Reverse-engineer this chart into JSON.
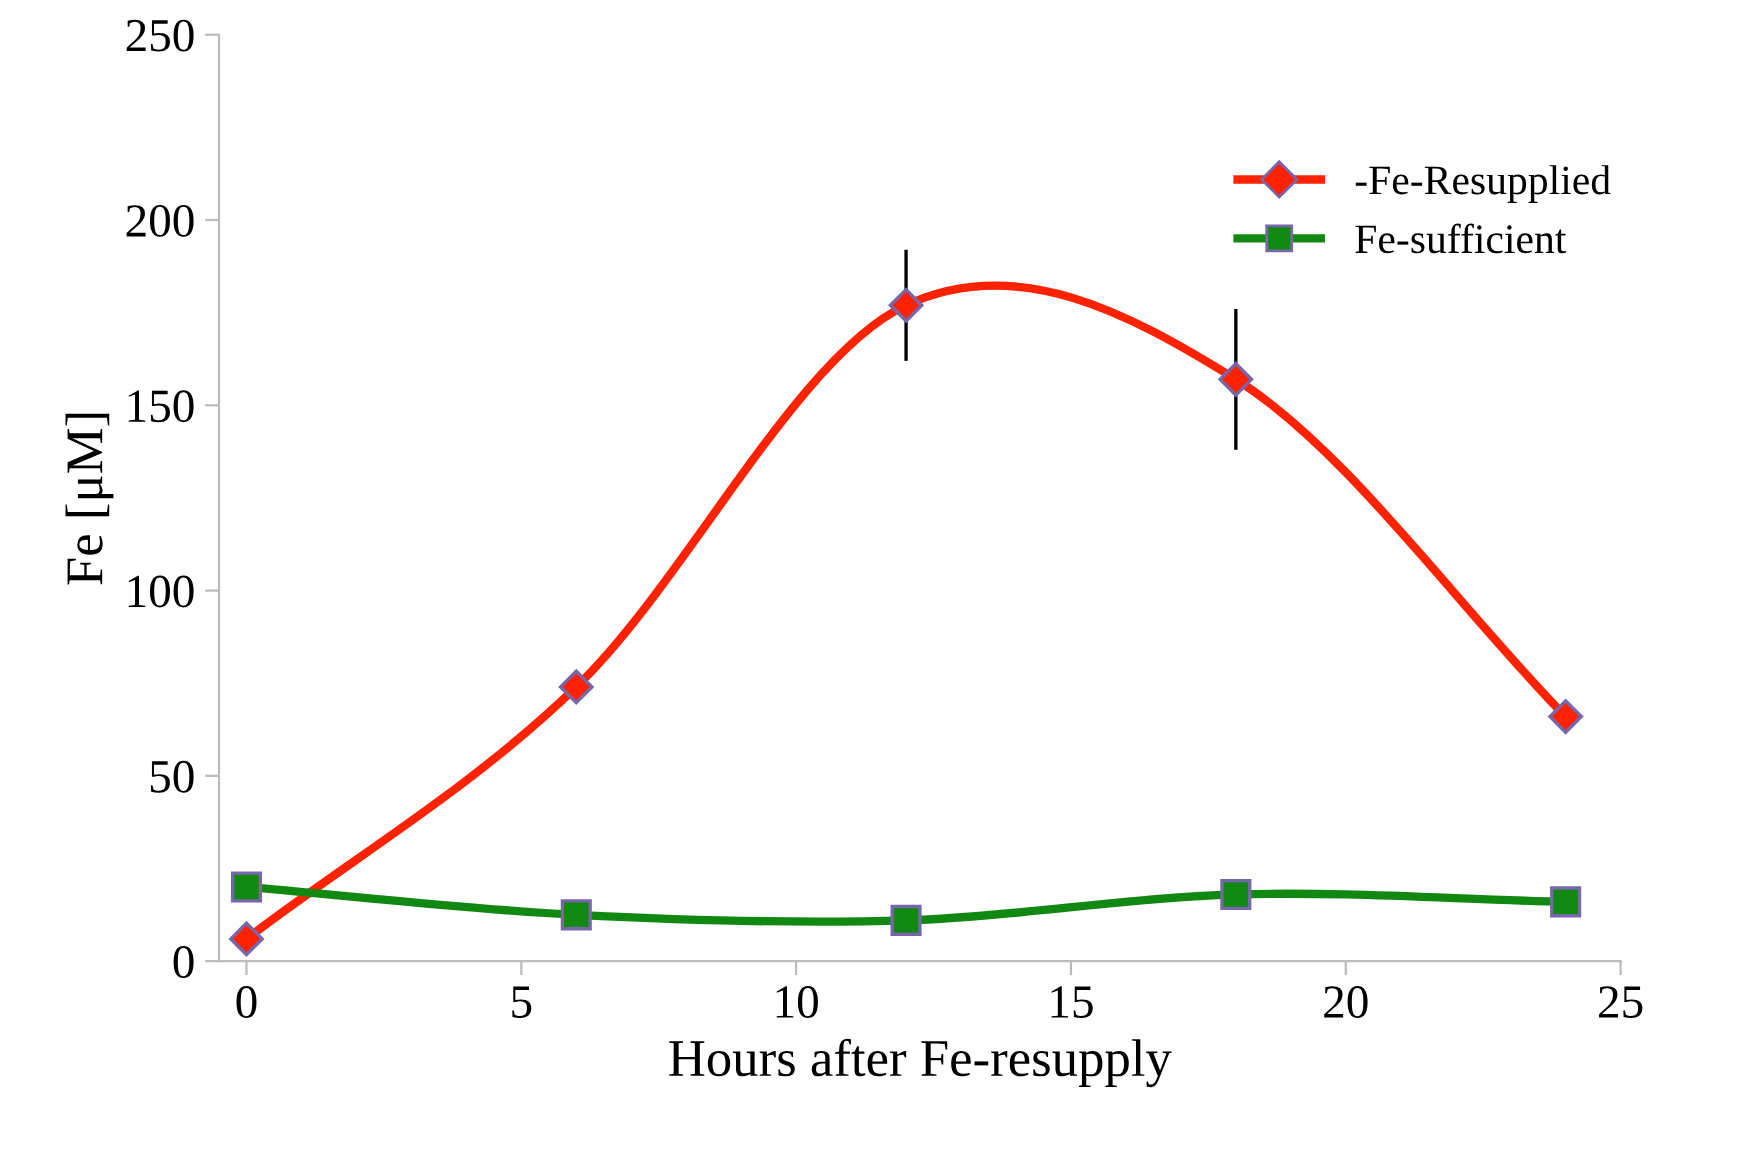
{
  "chart_data": {
    "type": "line",
    "xlabel": "Hours after Fe-resupply",
    "ylabel": "Fe [μM]",
    "x": [
      0,
      6,
      12,
      18,
      24
    ],
    "series": [
      {
        "name": "-Fe-Resupplied",
        "color": "#ff2200",
        "marker": "diamond",
        "values": [
          6,
          74,
          177,
          157,
          66
        ],
        "errors": [
          null,
          null,
          15,
          19,
          null
        ]
      },
      {
        "name": "Fe-sufficient",
        "color": "#118811",
        "marker": "square",
        "values": [
          20,
          12.5,
          11,
          18,
          16
        ]
      }
    ],
    "xlim": [
      -0.5,
      25
    ],
    "xticks": [
      0,
      5,
      10,
      15,
      20,
      25
    ],
    "ylim": [
      0,
      250
    ],
    "yticks": [
      0,
      50,
      100,
      150,
      200,
      250
    ],
    "grid": false,
    "legend": "top right",
    "line_style": "solid"
  }
}
